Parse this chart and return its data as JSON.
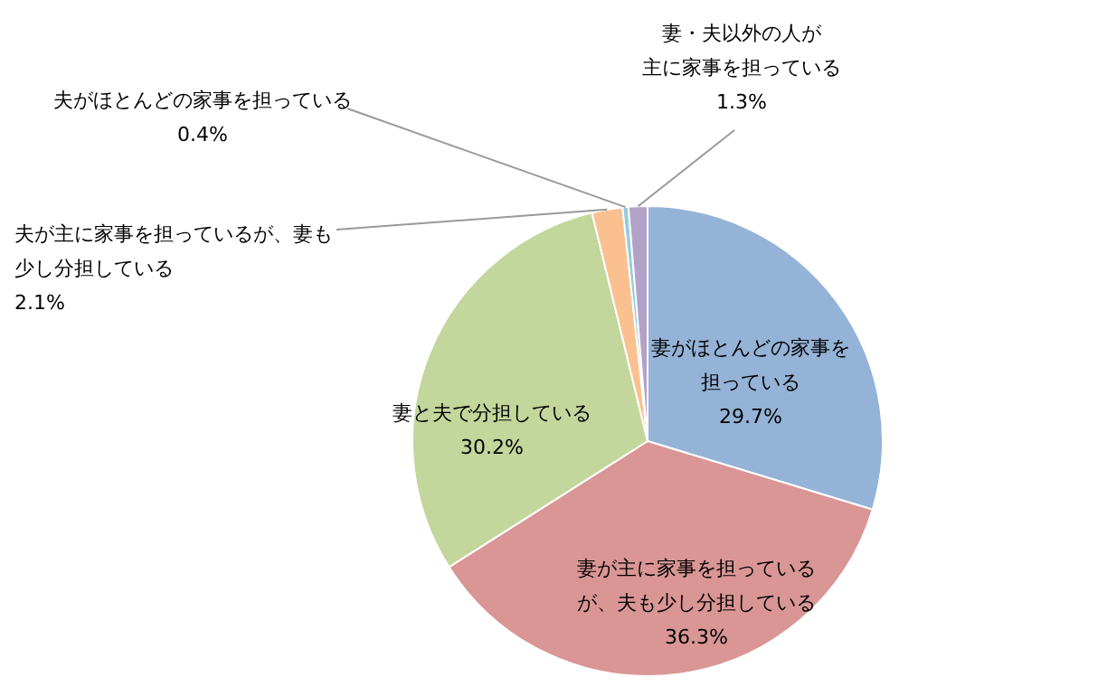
{
  "chart_data": {
    "type": "pie",
    "categories": [
      "妻がほとんどの家事を担っている",
      "妻が主に家事を担っているが、夫も少し分担している",
      "妻と夫で分担している",
      "夫が主に家事を担っているが、妻も少し分担している",
      "夫がほとんどの家事を担っている",
      "妻・夫以外の人が主に家事を担っている"
    ],
    "values": [
      29.7,
      36.3,
      30.2,
      2.1,
      0.4,
      1.3
    ],
    "value_labels": [
      "29.7%",
      "36.3%",
      "30.2%",
      "2.1%",
      "0.4%",
      "1.3%"
    ],
    "colors": [
      "#95b3d7",
      "#d99694",
      "#c3d69b",
      "#fac090",
      "#93cddd",
      "#b3a2c7"
    ]
  }
}
